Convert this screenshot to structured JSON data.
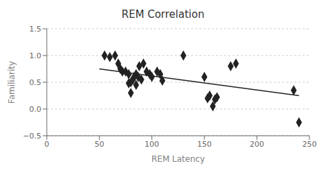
{
  "chart_data": {
    "type": "scatter",
    "title": "REM Correlation",
    "xlabel": "REM Latency",
    "ylabel": "Familiarity",
    "xlim": [
      0,
      250
    ],
    "ylim": [
      -0.5,
      1.5
    ],
    "xticks": [
      0,
      50,
      100,
      150,
      200,
      250
    ],
    "yticks": [
      {
        "value": -0.5,
        "label": "−0.5"
      },
      {
        "value": 0,
        "label": "0.0"
      },
      0.5,
      {
        "value": 1,
        "label": "1.0"
      },
      1.5
    ],
    "grid": "y",
    "series": [
      {
        "type": "scatter",
        "marker": "diamond",
        "color": "#222222",
        "x": [
          55,
          60,
          65,
          68,
          70,
          72,
          75,
          78,
          78,
          80,
          80,
          82,
          83,
          85,
          85,
          87,
          88,
          90,
          92,
          95,
          98,
          100,
          105,
          108,
          110,
          130,
          150,
          153,
          155,
          158,
          160,
          162,
          175,
          180,
          235,
          240
        ],
        "values": [
          1.0,
          0.97,
          1.0,
          0.85,
          0.75,
          0.7,
          0.7,
          0.65,
          0.48,
          0.3,
          0.5,
          0.55,
          0.6,
          0.45,
          0.65,
          0.6,
          0.8,
          0.55,
          0.85,
          0.7,
          0.65,
          0.6,
          0.7,
          0.65,
          0.53,
          1.0,
          0.6,
          0.2,
          0.25,
          0.05,
          0.18,
          0.22,
          0.8,
          0.85,
          0.35,
          -0.25
        ]
      },
      {
        "type": "line",
        "color": "#222222",
        "x": [
          50,
          240
        ],
        "values": [
          0.75,
          0.25
        ]
      }
    ]
  }
}
